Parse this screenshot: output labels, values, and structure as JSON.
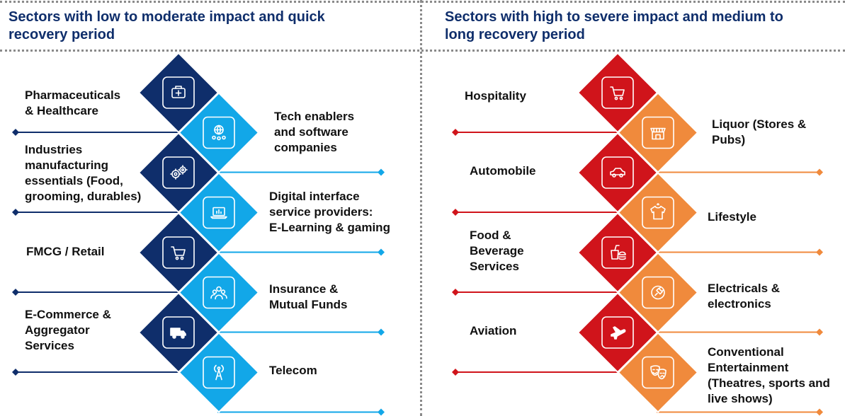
{
  "left_panel": {
    "title_line1": "Sectors with low to moderate impact and quick",
    "title_line2": "recovery period",
    "colors": {
      "dark": "#0f2e6b",
      "light": "#12a7e8"
    },
    "items": [
      {
        "lines": [
          "Pharmaceuticals",
          "& Healthcare"
        ],
        "icon": "medical-kit-icon"
      },
      {
        "lines": [
          "Tech enablers",
          "and software",
          "companies"
        ],
        "icon": "global-network-icon"
      },
      {
        "lines": [
          "Industries",
          "manufacturing",
          "essentials (Food,",
          "grooming, durables)"
        ],
        "icon": "gears-icon"
      },
      {
        "lines": [
          "Digital interface",
          "service providers:",
          "E-Learning & gaming"
        ],
        "icon": "laptop-chart-icon"
      },
      {
        "lines": [
          "FMCG / Retail"
        ],
        "icon": "shopping-cart-icon"
      },
      {
        "lines": [
          "Insurance &",
          "Mutual Funds"
        ],
        "icon": "people-group-icon"
      },
      {
        "lines": [
          "E-Commerce &",
          "Aggregator",
          "Services"
        ],
        "icon": "delivery-truck-icon"
      },
      {
        "lines": [
          "Telecom"
        ],
        "icon": "cell-tower-icon"
      }
    ]
  },
  "right_panel": {
    "title_line1": "Sectors with high to severe impact and medium to",
    "title_line2": "long recovery period",
    "colors": {
      "dark": "#d0141b",
      "light": "#f08a3c"
    },
    "items": [
      {
        "lines": [
          "Hospitality"
        ],
        "icon": "shopping-cart-icon"
      },
      {
        "lines": [
          "Liquor (Stores &",
          "Pubs)"
        ],
        "icon": "storefront-icon"
      },
      {
        "lines": [
          "Automobile"
        ],
        "icon": "car-icon"
      },
      {
        "lines": [
          "Lifestyle"
        ],
        "icon": "tshirt-icon"
      },
      {
        "lines": [
          "Food &",
          "Beverage",
          "Services"
        ],
        "icon": "fast-food-icon"
      },
      {
        "lines": [
          "Electricals &",
          "electronics"
        ],
        "icon": "plug-icon"
      },
      {
        "lines": [
          "Aviation"
        ],
        "icon": "airplane-icon"
      },
      {
        "lines": [
          "Conventional",
          "Entertainment",
          "(Theatres, sports and",
          "live shows)"
        ],
        "icon": "theatre-masks-icon"
      }
    ]
  }
}
